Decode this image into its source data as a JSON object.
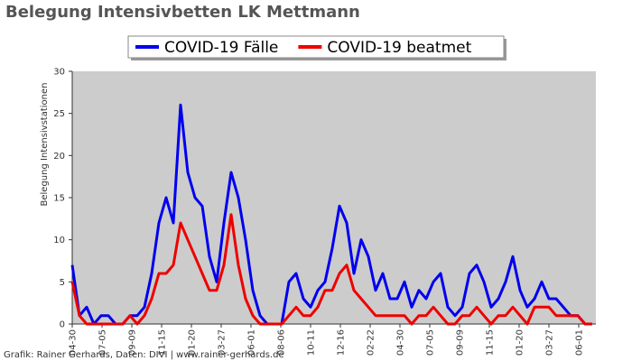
{
  "chart_data": {
    "type": "line",
    "title": "Belegung Intensivbetten LK Mettmann",
    "y_label": "Belegung Intensivstationen",
    "footer": "Grafik: Rainer Gerhards, Daten: DIVI | www.rainer-gerhards.de",
    "x": [
      0,
      16,
      32,
      48,
      64,
      80,
      96,
      112,
      128,
      144,
      160,
      176,
      192,
      208,
      224,
      240,
      256,
      272,
      288,
      304,
      320,
      336,
      352,
      368,
      384,
      400,
      416,
      432,
      448,
      464,
      480,
      496,
      512,
      528,
      544,
      560,
      576,
      592,
      608,
      624,
      640,
      656,
      672,
      688,
      704,
      720,
      736,
      752,
      768,
      784,
      800,
      816,
      832,
      848,
      864,
      880,
      896,
      912,
      928,
      944,
      960,
      976,
      992,
      1008,
      1024,
      1040,
      1056,
      1072,
      1088,
      1104,
      1120,
      1136,
      1152
    ],
    "series": [
      {
        "name": "COVID-19 Fälle",
        "color": "#0000ee",
        "values": [
          7,
          1,
          2,
          0,
          1,
          1,
          0,
          0,
          1,
          1,
          2,
          6,
          12,
          15,
          12,
          26,
          18,
          15,
          14,
          8,
          5,
          12,
          18,
          15,
          10,
          4,
          1,
          0,
          0,
          0,
          5,
          6,
          3,
          2,
          4,
          5,
          9,
          14,
          12,
          6,
          10,
          8,
          4,
          6,
          3,
          3,
          5,
          2,
          4,
          3,
          5,
          6,
          2,
          1,
          2,
          6,
          7,
          5,
          2,
          3,
          5,
          8,
          4,
          2,
          3,
          5,
          3,
          3,
          2,
          1,
          1,
          0,
          0
        ]
      },
      {
        "name": "COVID-19 beatmet",
        "color": "#ee0000",
        "values": [
          5,
          1,
          0,
          0,
          0,
          0,
          0,
          0,
          1,
          0,
          1,
          3,
          6,
          6,
          7,
          12,
          10,
          8,
          6,
          4,
          4,
          7,
          13,
          7,
          3,
          1,
          0,
          0,
          0,
          0,
          1,
          2,
          1,
          1,
          2,
          4,
          4,
          6,
          7,
          4,
          3,
          2,
          1,
          1,
          1,
          1,
          1,
          0,
          1,
          1,
          2,
          1,
          0,
          0,
          1,
          1,
          2,
          1,
          0,
          1,
          1,
          2,
          1,
          0,
          2,
          2,
          2,
          1,
          1,
          1,
          1,
          0,
          0
        ]
      }
    ],
    "xlim": [
      0,
      1160
    ],
    "xticks": [
      {
        "value": 0,
        "label": "04-30"
      },
      {
        "value": 66,
        "label": "07-05"
      },
      {
        "value": 132,
        "label": "09-09"
      },
      {
        "value": 198,
        "label": "11-15"
      },
      {
        "value": 264,
        "label": "01-20"
      },
      {
        "value": 330,
        "label": "03-27"
      },
      {
        "value": 396,
        "label": "06-01"
      },
      {
        "value": 462,
        "label": "08-06"
      },
      {
        "value": 528,
        "label": "10-11"
      },
      {
        "value": 594,
        "label": "12-16"
      },
      {
        "value": 660,
        "label": "02-22"
      },
      {
        "value": 726,
        "label": "04-30"
      },
      {
        "value": 792,
        "label": "07-05"
      },
      {
        "value": 858,
        "label": "09-09"
      },
      {
        "value": 924,
        "label": "11-15"
      },
      {
        "value": 990,
        "label": "01-20"
      },
      {
        "value": 1056,
        "label": "03-27"
      },
      {
        "value": 1122,
        "label": "06-01"
      }
    ],
    "ylim": [
      0,
      30
    ],
    "yticks": [
      0,
      5,
      10,
      15,
      20,
      25,
      30
    ]
  }
}
